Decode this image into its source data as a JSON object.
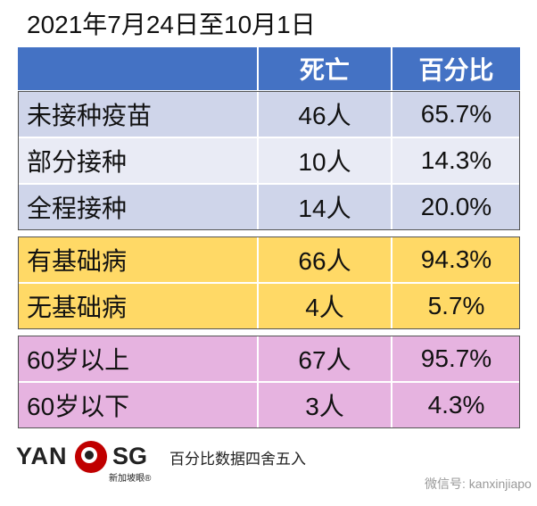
{
  "title": "2021年7月24日至10月1日",
  "table": {
    "header": [
      "死亡",
      "百分比"
    ],
    "groups": [
      [
        [
          "未接种疫苗",
          "46人",
          "65.7%"
        ],
        [
          "部分接种",
          "10人",
          "14.3%"
        ],
        [
          "全程接种",
          "14人",
          "20.0%"
        ]
      ],
      [
        [
          "有基础病",
          "66人",
          "94.3%"
        ],
        [
          "无基础病",
          "4人",
          "5.7%"
        ]
      ],
      [
        [
          "60岁以上",
          "67人",
          "95.7%"
        ],
        [
          "60岁以下",
          "3人",
          "4.3%"
        ]
      ]
    ]
  },
  "footer": {
    "logo_left": "YAN",
    "logo_right": "SG",
    "logo_sub": "新加坡眼®",
    "note": "百分比数据四舍五入",
    "watermark": "微信号: kanxinjiapo"
  }
}
